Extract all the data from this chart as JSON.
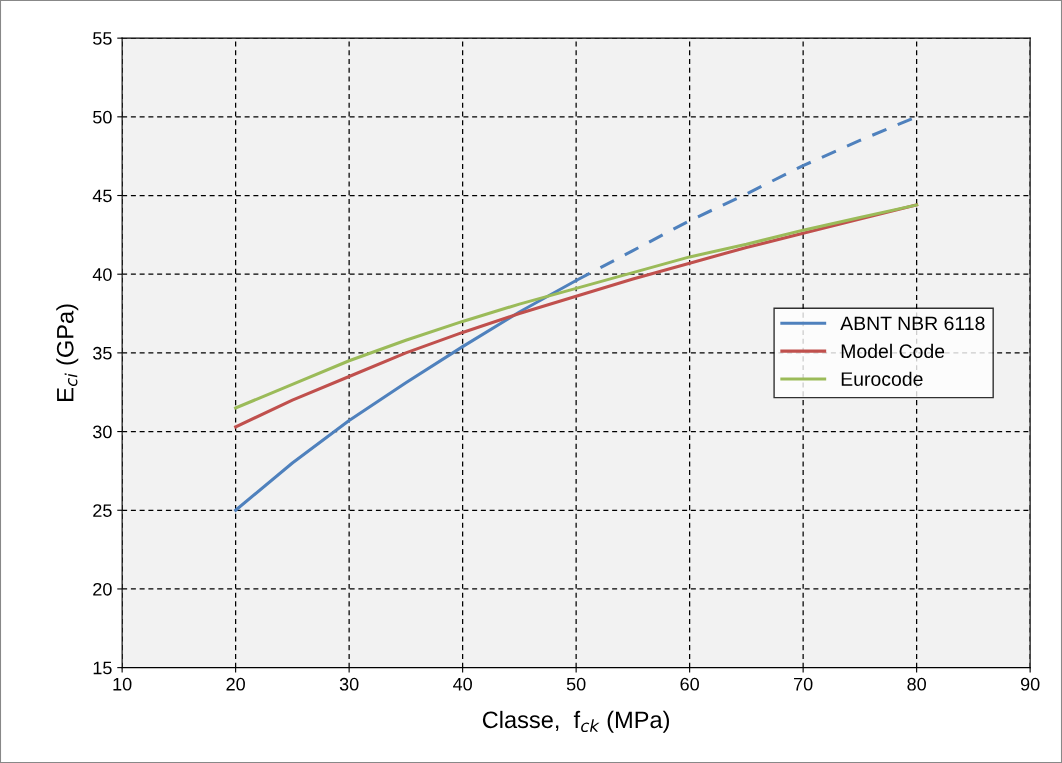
{
  "chart_data": {
    "type": "line",
    "xlabel": "Classe,  f$_{ck}$ (MPa)",
    "ylabel": "E$_{ci}$ (GPa)",
    "xlim": [
      10,
      90
    ],
    "xticks": [
      10,
      20,
      30,
      40,
      50,
      60,
      70,
      80,
      90
    ],
    "ylim": [
      15,
      55
    ],
    "yticks": [
      15,
      20,
      25,
      30,
      35,
      40,
      45,
      50,
      55
    ],
    "grid": true,
    "legend": "right",
    "marker": "none",
    "series": [
      {
        "name": "ABNT NBR 6118",
        "color": "#4f81bd",
        "line_style": "solid",
        "x": [
          20,
          25,
          30,
          35,
          40,
          45,
          50
        ],
        "values": [
          25.0,
          28.0,
          30.7,
          33.1,
          35.4,
          37.6,
          39.6
        ]
      },
      {
        "color": "#4f81bd",
        "line_style": "dashed",
        "x": [
          50,
          55,
          60,
          65,
          70,
          75,
          80
        ],
        "values": [
          39.6,
          41.5,
          43.4,
          45.1,
          46.9,
          48.5,
          50.0
        ]
      },
      {
        "name": "Model Code",
        "color": "#c0504d",
        "line_style": "solid",
        "x": [
          20,
          25,
          30,
          35,
          40,
          45,
          50,
          55,
          60,
          65,
          70,
          75,
          80
        ],
        "values": [
          30.3,
          32.0,
          33.5,
          35.0,
          36.3,
          37.5,
          38.6,
          39.7,
          40.7,
          41.7,
          42.6,
          43.5,
          44.4
        ]
      },
      {
        "name": "Eurocode",
        "color": "#9bbb59",
        "line_style": "solid",
        "x": [
          20,
          25,
          30,
          35,
          40,
          45,
          50,
          55,
          60,
          65,
          70,
          75,
          80
        ],
        "values": [
          31.5,
          33.0,
          34.5,
          35.8,
          37.0,
          38.1,
          39.1,
          40.1,
          41.1,
          41.9,
          42.8,
          43.6,
          44.4
        ]
      }
    ]
  }
}
